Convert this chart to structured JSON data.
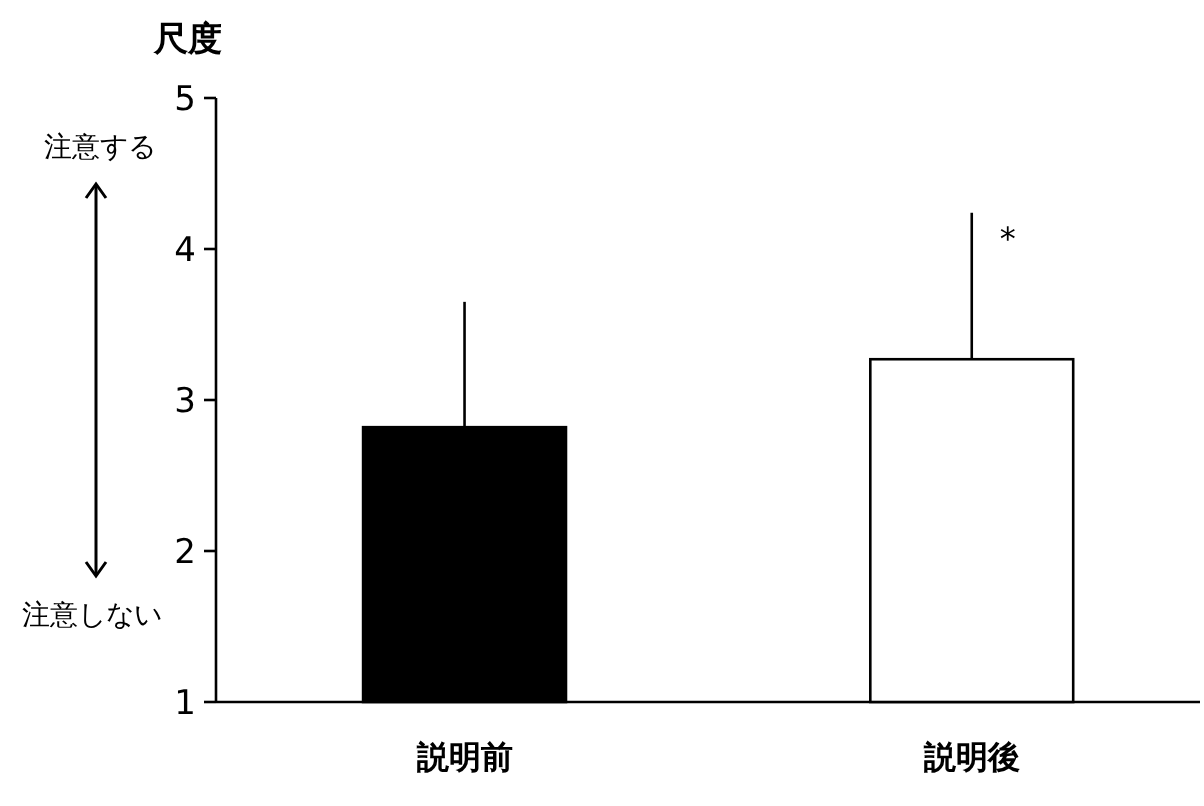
{
  "chart_data": {
    "type": "bar",
    "ylabel": "尺度",
    "categories": [
      "説明前",
      "説明後"
    ],
    "series": [
      {
        "values": [
          2.82,
          3.27
        ],
        "errors": [
          [
            2.82,
            3.65
          ],
          [
            3.27,
            4.24
          ]
        ]
      }
    ],
    "colors": [
      "#000000",
      "#ffffff"
    ],
    "ylim": [
      1,
      5
    ],
    "yticks": [
      1,
      2,
      3,
      4,
      5
    ],
    "grid": false,
    "annotations": [
      {
        "text": "*",
        "x": "説明後",
        "y": 4.1
      },
      "注意する",
      "注意しない"
    ]
  }
}
